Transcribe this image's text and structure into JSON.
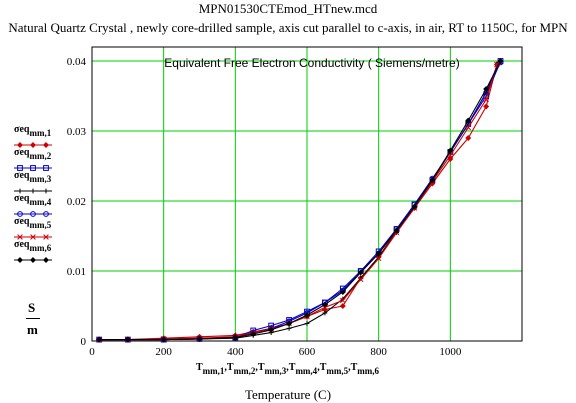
{
  "header": {
    "filename": "MPN01530CTEmod_HTnew.mcd",
    "subtitle": "Natural Quartz Crystal , newly core-drilled sample, axis cut parallel to c-axis, in air, RT to 1150C, for MPN"
  },
  "units": {
    "numerator": "S",
    "denominator": "m"
  },
  "x_variables": [
    {
      "base": "T",
      "sub": "mm,1"
    },
    {
      "base": "T",
      "sub": "mm,2"
    },
    {
      "base": "T",
      "sub": "mm,3"
    },
    {
      "base": "T",
      "sub": "mm,4"
    },
    {
      "base": "T",
      "sub": "mm,5"
    },
    {
      "base": "T",
      "sub": "mm,6"
    }
  ],
  "chart_data": {
    "type": "line",
    "title": "Equivalent Free Electron Conductivity ( Siemens/metre)",
    "xlabel": "Temperature (C)",
    "ylabel": "S/m",
    "xlim": [
      0,
      1200
    ],
    "ylim": [
      0,
      0.042
    ],
    "xticks": [
      0,
      200,
      400,
      600,
      800,
      1000
    ],
    "yticks": [
      0,
      0.01,
      0.02,
      0.03,
      0.04
    ],
    "xtick_labels": [
      "0",
      "200",
      "400",
      "600",
      "800",
      "1000"
    ],
    "ytick_labels": [
      "0",
      "0.01",
      "0.02",
      "0.03",
      "0.04"
    ],
    "grid": true,
    "legend_position": "left",
    "series": [
      {
        "name": "σeq mm,1",
        "legend_base": "σeq",
        "legend_sub": "mm,1",
        "color": "#cc0000",
        "marker": "diamond",
        "x": [
          20,
          100,
          200,
          300,
          400,
          450,
          500,
          550,
          600,
          650,
          700,
          750,
          800,
          850,
          900,
          950,
          1000,
          1050,
          1100,
          1130
        ],
        "y": [
          0.0002,
          0.0002,
          0.0004,
          0.0006,
          0.0008,
          0.0013,
          0.0018,
          0.0025,
          0.0035,
          0.0045,
          0.005,
          0.009,
          0.012,
          0.0158,
          0.019,
          0.0225,
          0.026,
          0.029,
          0.0335,
          0.0395
        ]
      },
      {
        "name": "σeq mm,2",
        "legend_base": "σeq",
        "legend_sub": "mm,2",
        "color": "#0000cc",
        "marker": "square",
        "x": [
          20,
          100,
          200,
          300,
          400,
          450,
          500,
          550,
          600,
          650,
          700,
          750,
          800,
          850,
          900,
          950,
          1000,
          1050,
          1100,
          1140
        ],
        "y": [
          0.0002,
          0.0002,
          0.0002,
          0.0003,
          0.0005,
          0.0015,
          0.0022,
          0.003,
          0.0042,
          0.0055,
          0.0075,
          0.01,
          0.0128,
          0.016,
          0.0195,
          0.023,
          0.027,
          0.031,
          0.035,
          0.04
        ]
      },
      {
        "name": "σeq mm,3",
        "legend_base": "σeq",
        "legend_sub": "mm,3",
        "color": "#000000",
        "marker": "plus",
        "x": [
          20,
          100,
          200,
          300,
          400,
          450,
          500,
          550,
          600,
          650,
          700,
          750,
          800,
          850,
          900,
          950,
          1000,
          1050,
          1100,
          1135
        ],
        "y": [
          0.0002,
          0.0002,
          0.0002,
          0.0003,
          0.0004,
          0.0008,
          0.0012,
          0.0018,
          0.0025,
          0.004,
          0.006,
          0.009,
          0.012,
          0.0155,
          0.0192,
          0.023,
          0.027,
          0.031,
          0.0355,
          0.0398
        ]
      },
      {
        "name": "σeq mm,4",
        "legend_base": "σeq",
        "legend_sub": "mm,4",
        "color": "#0000cc",
        "marker": "circle",
        "x": [
          20,
          100,
          200,
          300,
          400,
          450,
          500,
          550,
          600,
          650,
          700,
          750,
          800,
          850,
          900,
          950,
          1000,
          1050,
          1100,
          1140
        ],
        "y": [
          0.0002,
          0.0002,
          0.0002,
          0.0003,
          0.0005,
          0.0012,
          0.0018,
          0.0028,
          0.004,
          0.0055,
          0.0072,
          0.01,
          0.0125,
          0.016,
          0.0195,
          0.0232,
          0.027,
          0.031,
          0.0355,
          0.0398
        ]
      },
      {
        "name": "σeq mm,5",
        "legend_base": "σeq",
        "legend_sub": "mm,5",
        "color": "#cc0000",
        "marker": "x",
        "x": [
          20,
          100,
          200,
          300,
          400,
          450,
          500,
          550,
          600,
          650,
          700,
          750,
          800,
          850,
          900,
          950,
          1000,
          1050,
          1100,
          1130
        ],
        "y": [
          0.0002,
          0.0002,
          0.0003,
          0.0004,
          0.0006,
          0.0012,
          0.0017,
          0.0025,
          0.0035,
          0.0048,
          0.0058,
          0.0088,
          0.0118,
          0.0155,
          0.019,
          0.0228,
          0.0265,
          0.0305,
          0.0345,
          0.0395
        ]
      },
      {
        "name": "σeq mm,6",
        "legend_base": "σeq",
        "legend_sub": "mm,6",
        "color": "#000000",
        "marker": "diamond",
        "x": [
          20,
          100,
          200,
          300,
          400,
          450,
          500,
          550,
          600,
          650,
          700,
          750,
          800,
          850,
          900,
          950,
          1000,
          1050,
          1100,
          1140
        ],
        "y": [
          0.0002,
          0.0002,
          0.0002,
          0.0003,
          0.0005,
          0.001,
          0.0016,
          0.0025,
          0.0037,
          0.0052,
          0.007,
          0.0098,
          0.0125,
          0.0158,
          0.0192,
          0.023,
          0.0272,
          0.0315,
          0.036,
          0.04
        ]
      }
    ]
  }
}
